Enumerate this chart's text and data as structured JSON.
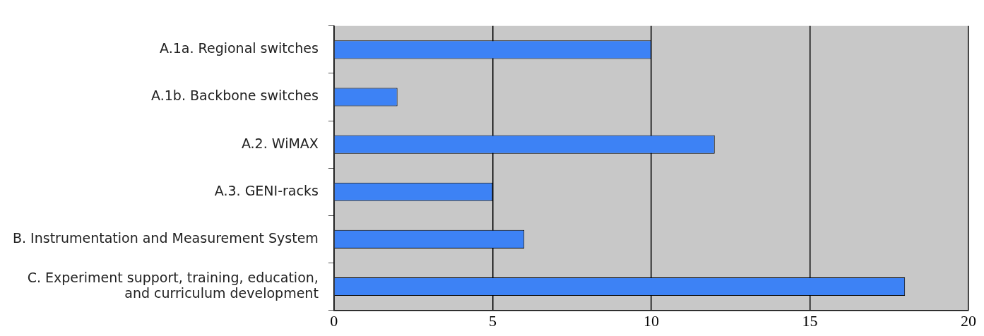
{
  "chart_data": {
    "type": "bar",
    "orientation": "horizontal",
    "categories": [
      "A.1a. Regional switches",
      "A.1b. Backbone switches",
      "A.2. WiMAX",
      "A.3. GENI-racks",
      "B. Instrumentation and Measurement System",
      "C. Experiment support, training, education, and curriculum development"
    ],
    "values": [
      10,
      2,
      12,
      5,
      6,
      18
    ],
    "color": "#3d82f5",
    "xlim": [
      0,
      20
    ],
    "xticks": [
      0,
      5,
      10,
      15,
      20
    ],
    "grid": "x"
  }
}
